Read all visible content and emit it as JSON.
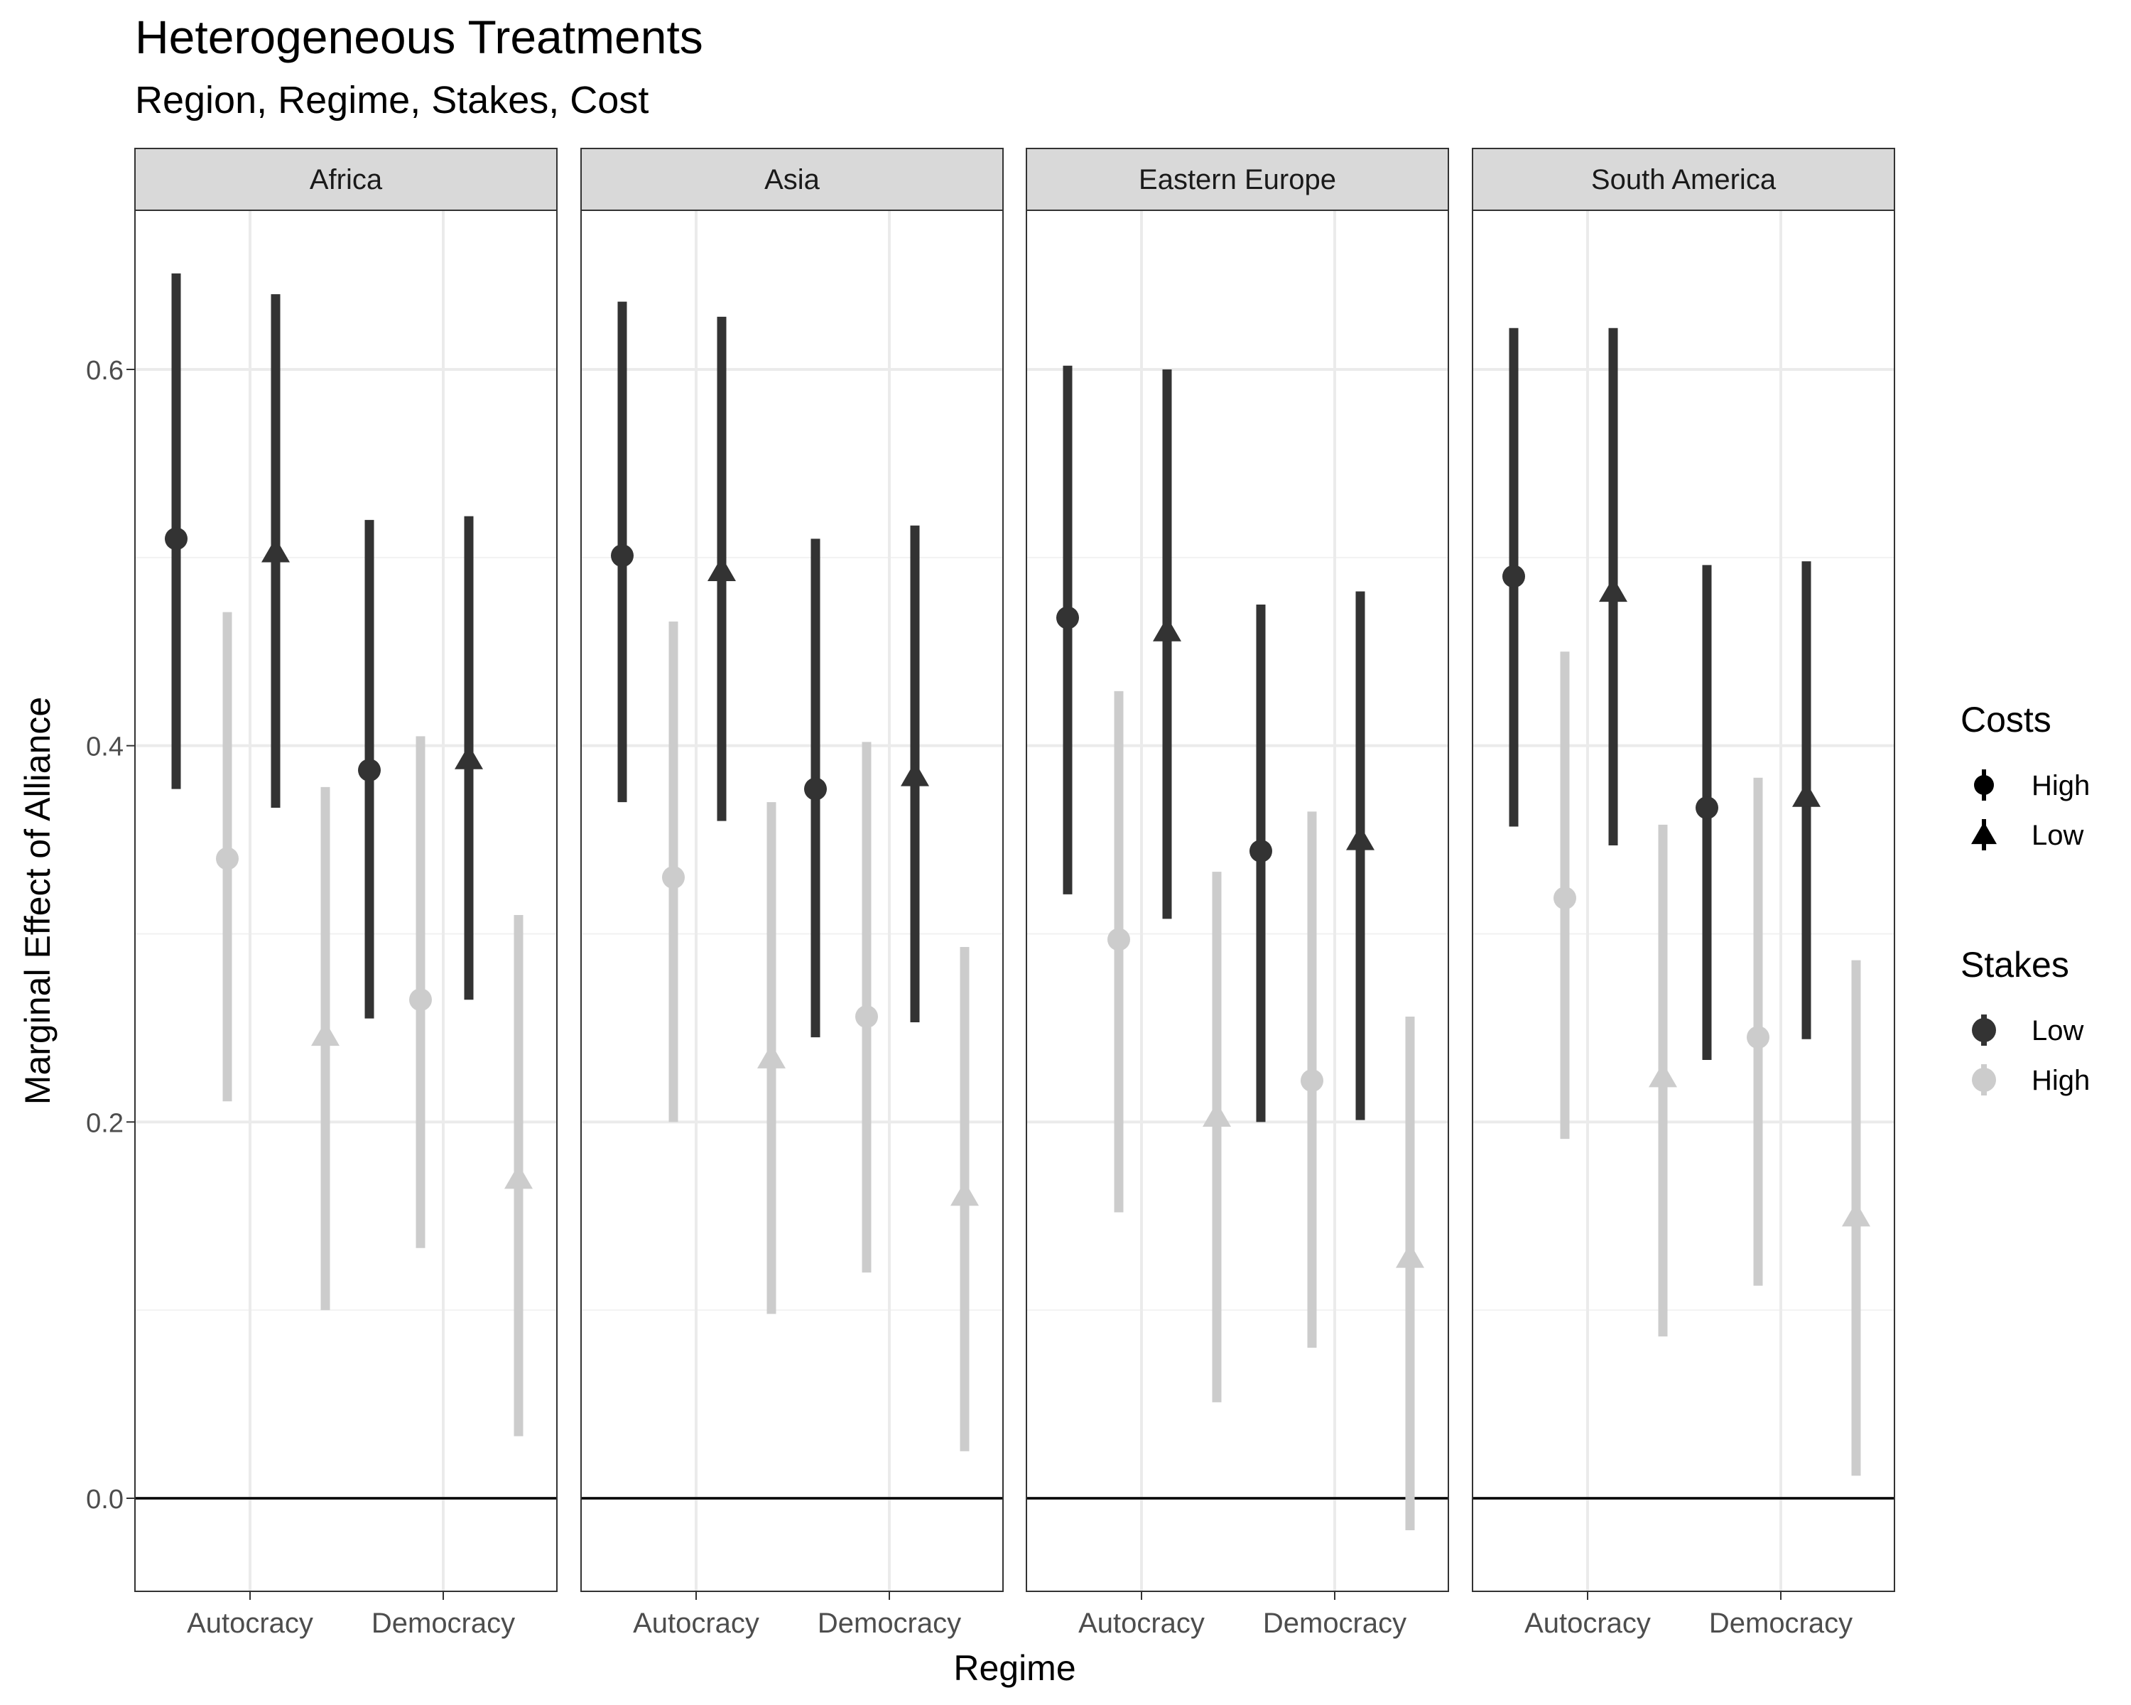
{
  "chart_data": {
    "type": "pointrange",
    "title": "Heterogeneous Treatments",
    "subtitle": "Region, Regime, Stakes, Cost",
    "xlabel": "Regime",
    "ylabel": "Marginal Effect of Alliance",
    "ylim": [
      -0.05,
      0.69
    ],
    "yticks": [
      0.0,
      0.2,
      0.4,
      0.6
    ],
    "ytick_labels": [
      "0.0",
      "0.2",
      "0.4",
      "0.6"
    ],
    "categories": [
      "Autocracy",
      "Democracy"
    ],
    "facets": [
      "Africa",
      "Asia",
      "Eastern Europe",
      "South America"
    ],
    "reference_line": 0,
    "grid": true,
    "colors": {
      "Low": "#333333",
      "High": "#cccccc"
    },
    "legends": [
      {
        "title": "Costs",
        "entries": [
          {
            "label": "High",
            "shape": "circle"
          },
          {
            "label": "Low",
            "shape": "triangle"
          }
        ]
      },
      {
        "title": "Stakes",
        "entries": [
          {
            "label": "Low",
            "color": "#333333"
          },
          {
            "label": "High",
            "color": "#cccccc"
          }
        ]
      }
    ],
    "legend_position": "right",
    "data": [
      {
        "facet": "Africa",
        "regime": "Autocracy",
        "costs": "High",
        "stakes": "Low",
        "estimate": 0.51,
        "lower": 0.377,
        "upper": 0.651
      },
      {
        "facet": "Africa",
        "regime": "Autocracy",
        "costs": "High",
        "stakes": "High",
        "estimate": 0.34,
        "lower": 0.211,
        "upper": 0.471
      },
      {
        "facet": "Africa",
        "regime": "Autocracy",
        "costs": "Low",
        "stakes": "Low",
        "estimate": 0.503,
        "lower": 0.367,
        "upper": 0.64
      },
      {
        "facet": "Africa",
        "regime": "Autocracy",
        "costs": "Low",
        "stakes": "High",
        "estimate": 0.246,
        "lower": 0.1,
        "upper": 0.378
      },
      {
        "facet": "Africa",
        "regime": "Democracy",
        "costs": "High",
        "stakes": "Low",
        "estimate": 0.387,
        "lower": 0.255,
        "upper": 0.52
      },
      {
        "facet": "Africa",
        "regime": "Democracy",
        "costs": "High",
        "stakes": "High",
        "estimate": 0.265,
        "lower": 0.133,
        "upper": 0.405
      },
      {
        "facet": "Africa",
        "regime": "Democracy",
        "costs": "Low",
        "stakes": "Low",
        "estimate": 0.393,
        "lower": 0.265,
        "upper": 0.522
      },
      {
        "facet": "Africa",
        "regime": "Democracy",
        "costs": "Low",
        "stakes": "High",
        "estimate": 0.17,
        "lower": 0.033,
        "upper": 0.31
      },
      {
        "facet": "Asia",
        "regime": "Autocracy",
        "costs": "High",
        "stakes": "Low",
        "estimate": 0.501,
        "lower": 0.37,
        "upper": 0.636
      },
      {
        "facet": "Asia",
        "regime": "Autocracy",
        "costs": "High",
        "stakes": "High",
        "estimate": 0.33,
        "lower": 0.2,
        "upper": 0.466
      },
      {
        "facet": "Asia",
        "regime": "Autocracy",
        "costs": "Low",
        "stakes": "Low",
        "estimate": 0.493,
        "lower": 0.36,
        "upper": 0.628
      },
      {
        "facet": "Asia",
        "regime": "Autocracy",
        "costs": "Low",
        "stakes": "High",
        "estimate": 0.234,
        "lower": 0.098,
        "upper": 0.37
      },
      {
        "facet": "Asia",
        "regime": "Democracy",
        "costs": "High",
        "stakes": "Low",
        "estimate": 0.377,
        "lower": 0.245,
        "upper": 0.51
      },
      {
        "facet": "Asia",
        "regime": "Democracy",
        "costs": "High",
        "stakes": "High",
        "estimate": 0.256,
        "lower": 0.12,
        "upper": 0.402
      },
      {
        "facet": "Asia",
        "regime": "Democracy",
        "costs": "Low",
        "stakes": "Low",
        "estimate": 0.384,
        "lower": 0.253,
        "upper": 0.517
      },
      {
        "facet": "Asia",
        "regime": "Democracy",
        "costs": "Low",
        "stakes": "High",
        "estimate": 0.161,
        "lower": 0.025,
        "upper": 0.293
      },
      {
        "facet": "Eastern Europe",
        "regime": "Autocracy",
        "costs": "High",
        "stakes": "Low",
        "estimate": 0.468,
        "lower": 0.321,
        "upper": 0.602
      },
      {
        "facet": "Eastern Europe",
        "regime": "Autocracy",
        "costs": "High",
        "stakes": "High",
        "estimate": 0.297,
        "lower": 0.152,
        "upper": 0.429
      },
      {
        "facet": "Eastern Europe",
        "regime": "Autocracy",
        "costs": "Low",
        "stakes": "Low",
        "estimate": 0.461,
        "lower": 0.308,
        "upper": 0.6
      },
      {
        "facet": "Eastern Europe",
        "regime": "Autocracy",
        "costs": "Low",
        "stakes": "High",
        "estimate": 0.203,
        "lower": 0.051,
        "upper": 0.333
      },
      {
        "facet": "Eastern Europe",
        "regime": "Democracy",
        "costs": "High",
        "stakes": "Low",
        "estimate": 0.344,
        "lower": 0.2,
        "upper": 0.475
      },
      {
        "facet": "Eastern Europe",
        "regime": "Democracy",
        "costs": "High",
        "stakes": "High",
        "estimate": 0.222,
        "lower": 0.08,
        "upper": 0.365
      },
      {
        "facet": "Eastern Europe",
        "regime": "Democracy",
        "costs": "Low",
        "stakes": "Low",
        "estimate": 0.35,
        "lower": 0.201,
        "upper": 0.482
      },
      {
        "facet": "Eastern Europe",
        "regime": "Democracy",
        "costs": "Low",
        "stakes": "High",
        "estimate": 0.128,
        "lower": -0.017,
        "upper": 0.256
      },
      {
        "facet": "South America",
        "regime": "Autocracy",
        "costs": "High",
        "stakes": "Low",
        "estimate": 0.49,
        "lower": 0.357,
        "upper": 0.622
      },
      {
        "facet": "South America",
        "regime": "Autocracy",
        "costs": "High",
        "stakes": "High",
        "estimate": 0.319,
        "lower": 0.191,
        "upper": 0.45
      },
      {
        "facet": "South America",
        "regime": "Autocracy",
        "costs": "Low",
        "stakes": "Low",
        "estimate": 0.482,
        "lower": 0.347,
        "upper": 0.622
      },
      {
        "facet": "South America",
        "regime": "Autocracy",
        "costs": "Low",
        "stakes": "High",
        "estimate": 0.224,
        "lower": 0.086,
        "upper": 0.358
      },
      {
        "facet": "South America",
        "regime": "Democracy",
        "costs": "High",
        "stakes": "Low",
        "estimate": 0.367,
        "lower": 0.233,
        "upper": 0.496
      },
      {
        "facet": "South America",
        "regime": "Democracy",
        "costs": "High",
        "stakes": "High",
        "estimate": 0.245,
        "lower": 0.113,
        "upper": 0.383
      },
      {
        "facet": "South America",
        "regime": "Democracy",
        "costs": "Low",
        "stakes": "Low",
        "estimate": 0.373,
        "lower": 0.244,
        "upper": 0.498
      },
      {
        "facet": "South America",
        "regime": "Democracy",
        "costs": "Low",
        "stakes": "High",
        "estimate": 0.15,
        "lower": 0.012,
        "upper": 0.286
      }
    ]
  }
}
